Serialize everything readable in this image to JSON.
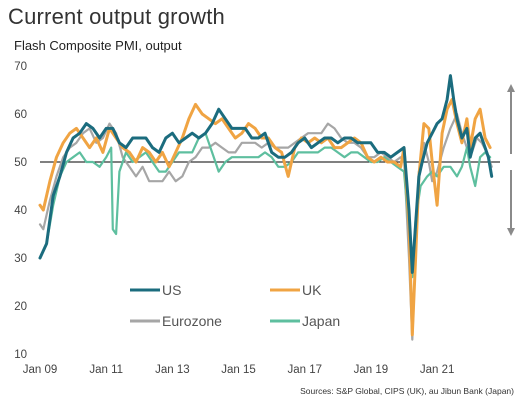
{
  "title": "Current output growth",
  "subtitle": "Flash Composite PMI, output",
  "source": "Sources: S&P Global, CIPS (UK), au Jibun Bank (Japan)",
  "colors": {
    "US": "#1b6c7e",
    "UK": "#f0a443",
    "Eurozone": "#a6a6a6",
    "Japan": "#5ebf9f",
    "arrow": "#8a8a8a",
    "refline": "#000000"
  },
  "chart_data": {
    "type": "line",
    "title": "Current output growth",
    "subtitle": "Flash Composite PMI, output",
    "xlabel": "",
    "ylabel": "",
    "xlim": [
      2009.0,
      2022.9
    ],
    "ylim": [
      10,
      70
    ],
    "yticks": [
      10,
      20,
      30,
      40,
      50,
      60,
      70
    ],
    "xticks": [
      {
        "value": 2009.0,
        "label": "Jan 09"
      },
      {
        "value": 2011.0,
        "label": "Jan 11"
      },
      {
        "value": 2013.0,
        "label": "Jan 13"
      },
      {
        "value": 2015.0,
        "label": "Jan 15"
      },
      {
        "value": 2017.0,
        "label": "Jan 17"
      },
      {
        "value": 2019.0,
        "label": "Jan 19"
      },
      {
        "value": 2021.0,
        "label": "Jan 21"
      }
    ],
    "reference_line": 50,
    "grid": false,
    "legend_position": "bottom-center",
    "series": [
      {
        "name": "US",
        "key": "US",
        "points": [
          [
            2009.0,
            30
          ],
          [
            2009.2,
            33
          ],
          [
            2009.4,
            43
          ],
          [
            2009.6,
            47
          ],
          [
            2009.8,
            52
          ],
          [
            2010.0,
            55
          ],
          [
            2010.2,
            56
          ],
          [
            2010.4,
            58
          ],
          [
            2010.6,
            57
          ],
          [
            2010.8,
            55
          ],
          [
            2011.0,
            57
          ],
          [
            2011.2,
            57
          ],
          [
            2011.4,
            54
          ],
          [
            2011.6,
            53
          ],
          [
            2011.8,
            55
          ],
          [
            2012.0,
            55
          ],
          [
            2012.2,
            55
          ],
          [
            2012.4,
            53
          ],
          [
            2012.6,
            52
          ],
          [
            2012.8,
            55
          ],
          [
            2013.0,
            56
          ],
          [
            2013.2,
            54
          ],
          [
            2013.4,
            55
          ],
          [
            2013.6,
            56
          ],
          [
            2013.8,
            55
          ],
          [
            2014.0,
            56
          ],
          [
            2014.2,
            58
          ],
          [
            2014.4,
            61
          ],
          [
            2014.6,
            59
          ],
          [
            2014.8,
            57
          ],
          [
            2015.0,
            57
          ],
          [
            2015.2,
            57
          ],
          [
            2015.4,
            55
          ],
          [
            2015.6,
            55
          ],
          [
            2015.8,
            56
          ],
          [
            2016.0,
            52
          ],
          [
            2016.2,
            51
          ],
          [
            2016.4,
            51
          ],
          [
            2016.6,
            52
          ],
          [
            2016.8,
            54
          ],
          [
            2017.0,
            55
          ],
          [
            2017.2,
            53
          ],
          [
            2017.4,
            54
          ],
          [
            2017.6,
            55
          ],
          [
            2017.8,
            55
          ],
          [
            2018.0,
            54
          ],
          [
            2018.2,
            55
          ],
          [
            2018.4,
            55
          ],
          [
            2018.6,
            54
          ],
          [
            2018.8,
            54
          ],
          [
            2019.0,
            54
          ],
          [
            2019.2,
            52
          ],
          [
            2019.4,
            52
          ],
          [
            2019.6,
            51
          ],
          [
            2019.8,
            52
          ],
          [
            2020.0,
            53
          ],
          [
            2020.15,
            40
          ],
          [
            2020.25,
            27
          ],
          [
            2020.35,
            37
          ],
          [
            2020.45,
            47
          ],
          [
            2020.55,
            50
          ],
          [
            2020.7,
            54
          ],
          [
            2020.85,
            56
          ],
          [
            2021.0,
            58
          ],
          [
            2021.15,
            59
          ],
          [
            2021.3,
            63
          ],
          [
            2021.4,
            68
          ],
          [
            2021.5,
            63
          ],
          [
            2021.6,
            59
          ],
          [
            2021.75,
            55
          ],
          [
            2021.9,
            57
          ],
          [
            2022.0,
            51
          ],
          [
            2022.15,
            55
          ],
          [
            2022.3,
            56
          ],
          [
            2022.45,
            53
          ],
          [
            2022.55,
            51
          ],
          [
            2022.65,
            47
          ]
        ]
      },
      {
        "name": "UK",
        "key": "UK",
        "points": [
          [
            2009.0,
            41
          ],
          [
            2009.1,
            40
          ],
          [
            2009.3,
            46
          ],
          [
            2009.5,
            51
          ],
          [
            2009.7,
            54
          ],
          [
            2009.9,
            56
          ],
          [
            2010.1,
            57
          ],
          [
            2010.3,
            55
          ],
          [
            2010.5,
            53
          ],
          [
            2010.7,
            55
          ],
          [
            2010.9,
            52
          ],
          [
            2011.1,
            57
          ],
          [
            2011.3,
            55
          ],
          [
            2011.5,
            53
          ],
          [
            2011.7,
            52
          ],
          [
            2011.9,
            50
          ],
          [
            2012.1,
            53
          ],
          [
            2012.3,
            52
          ],
          [
            2012.5,
            50
          ],
          [
            2012.7,
            52
          ],
          [
            2012.9,
            49
          ],
          [
            2013.1,
            52
          ],
          [
            2013.3,
            55
          ],
          [
            2013.5,
            59
          ],
          [
            2013.7,
            62
          ],
          [
            2013.9,
            60
          ],
          [
            2014.1,
            59
          ],
          [
            2014.3,
            58
          ],
          [
            2014.5,
            59
          ],
          [
            2014.7,
            57
          ],
          [
            2014.9,
            55
          ],
          [
            2015.1,
            56
          ],
          [
            2015.3,
            58
          ],
          [
            2015.5,
            57
          ],
          [
            2015.7,
            55
          ],
          [
            2015.9,
            55
          ],
          [
            2016.1,
            53
          ],
          [
            2016.3,
            52
          ],
          [
            2016.5,
            47
          ],
          [
            2016.7,
            53
          ],
          [
            2016.9,
            55
          ],
          [
            2017.1,
            54
          ],
          [
            2017.3,
            55
          ],
          [
            2017.5,
            54
          ],
          [
            2017.7,
            55
          ],
          [
            2017.9,
            53
          ],
          [
            2018.1,
            53
          ],
          [
            2018.3,
            54
          ],
          [
            2018.5,
            55
          ],
          [
            2018.7,
            54
          ],
          [
            2018.9,
            51
          ],
          [
            2019.1,
            50
          ],
          [
            2019.3,
            51
          ],
          [
            2019.5,
            50
          ],
          [
            2019.7,
            50
          ],
          [
            2019.9,
            49
          ],
          [
            2020.0,
            53
          ],
          [
            2020.15,
            37
          ],
          [
            2020.25,
            14
          ],
          [
            2020.35,
            30
          ],
          [
            2020.45,
            47
          ],
          [
            2020.6,
            58
          ],
          [
            2020.75,
            57
          ],
          [
            2020.85,
            50
          ],
          [
            2021.0,
            41
          ],
          [
            2021.15,
            56
          ],
          [
            2021.3,
            61
          ],
          [
            2021.45,
            63
          ],
          [
            2021.6,
            58
          ],
          [
            2021.75,
            54
          ],
          [
            2021.9,
            59
          ],
          [
            2022.0,
            53
          ],
          [
            2022.15,
            59
          ],
          [
            2022.3,
            61
          ],
          [
            2022.45,
            55
          ],
          [
            2022.6,
            53
          ]
        ]
      },
      {
        "name": "Eurozone",
        "key": "Eurozone",
        "points": [
          [
            2009.0,
            37
          ],
          [
            2009.1,
            36
          ],
          [
            2009.3,
            42
          ],
          [
            2009.5,
            47
          ],
          [
            2009.7,
            51
          ],
          [
            2009.9,
            53
          ],
          [
            2010.1,
            54
          ],
          [
            2010.3,
            56
          ],
          [
            2010.5,
            57
          ],
          [
            2010.7,
            54
          ],
          [
            2010.9,
            55
          ],
          [
            2011.1,
            58
          ],
          [
            2011.3,
            56
          ],
          [
            2011.5,
            51
          ],
          [
            2011.7,
            49
          ],
          [
            2011.9,
            47
          ],
          [
            2012.1,
            49
          ],
          [
            2012.3,
            46
          ],
          [
            2012.5,
            46
          ],
          [
            2012.7,
            46
          ],
          [
            2012.9,
            48
          ],
          [
            2013.1,
            46
          ],
          [
            2013.3,
            47
          ],
          [
            2013.5,
            50
          ],
          [
            2013.7,
            51
          ],
          [
            2013.9,
            53
          ],
          [
            2014.1,
            53
          ],
          [
            2014.3,
            54
          ],
          [
            2014.5,
            53
          ],
          [
            2014.7,
            52
          ],
          [
            2014.9,
            52
          ],
          [
            2015.1,
            54
          ],
          [
            2015.3,
            54
          ],
          [
            2015.5,
            54
          ],
          [
            2015.7,
            53
          ],
          [
            2015.9,
            54
          ],
          [
            2016.1,
            53
          ],
          [
            2016.3,
            53
          ],
          [
            2016.5,
            53
          ],
          [
            2016.7,
            54
          ],
          [
            2016.9,
            55
          ],
          [
            2017.1,
            56
          ],
          [
            2017.3,
            56
          ],
          [
            2017.5,
            56
          ],
          [
            2017.7,
            58
          ],
          [
            2017.9,
            57
          ],
          [
            2018.1,
            55
          ],
          [
            2018.3,
            54
          ],
          [
            2018.5,
            54
          ],
          [
            2018.7,
            53
          ],
          [
            2018.9,
            51
          ],
          [
            2019.1,
            51
          ],
          [
            2019.3,
            52
          ],
          [
            2019.5,
            51
          ],
          [
            2019.7,
            50
          ],
          [
            2019.9,
            51
          ],
          [
            2020.0,
            51
          ],
          [
            2020.15,
            30
          ],
          [
            2020.25,
            13
          ],
          [
            2020.35,
            31
          ],
          [
            2020.45,
            48
          ],
          [
            2020.6,
            54
          ],
          [
            2020.75,
            50
          ],
          [
            2020.85,
            46
          ],
          [
            2021.0,
            48
          ],
          [
            2021.2,
            53
          ],
          [
            2021.4,
            57
          ],
          [
            2021.6,
            60
          ],
          [
            2021.75,
            56
          ],
          [
            2021.9,
            53
          ],
          [
            2022.05,
            52
          ],
          [
            2022.2,
            55
          ],
          [
            2022.35,
            54
          ],
          [
            2022.5,
            52
          ],
          [
            2022.65,
            49
          ]
        ]
      },
      {
        "name": "Japan",
        "key": "Japan",
        "points": [
          [
            2009.0,
            30
          ],
          [
            2009.2,
            33
          ],
          [
            2009.4,
            41
          ],
          [
            2009.6,
            47
          ],
          [
            2009.8,
            50
          ],
          [
            2010.0,
            51
          ],
          [
            2010.2,
            52
          ],
          [
            2010.4,
            50
          ],
          [
            2010.6,
            50
          ],
          [
            2010.8,
            49
          ],
          [
            2011.0,
            51
          ],
          [
            2011.15,
            53
          ],
          [
            2011.2,
            36
          ],
          [
            2011.3,
            35
          ],
          [
            2011.4,
            48
          ],
          [
            2011.6,
            52
          ],
          [
            2011.8,
            50
          ],
          [
            2012.0,
            51
          ],
          [
            2012.2,
            52
          ],
          [
            2012.4,
            50
          ],
          [
            2012.6,
            48
          ],
          [
            2012.8,
            48
          ],
          [
            2013.0,
            50
          ],
          [
            2013.2,
            52
          ],
          [
            2013.4,
            52
          ],
          [
            2013.6,
            52
          ],
          [
            2013.8,
            55
          ],
          [
            2014.0,
            56
          ],
          [
            2014.2,
            52
          ],
          [
            2014.4,
            48
          ],
          [
            2014.6,
            50
          ],
          [
            2014.8,
            51
          ],
          [
            2015.0,
            51
          ],
          [
            2015.2,
            51
          ],
          [
            2015.4,
            51
          ],
          [
            2015.6,
            51
          ],
          [
            2015.8,
            52
          ],
          [
            2016.0,
            51
          ],
          [
            2016.2,
            49
          ],
          [
            2016.4,
            49
          ],
          [
            2016.6,
            50
          ],
          [
            2016.8,
            52
          ],
          [
            2017.0,
            52
          ],
          [
            2017.2,
            52
          ],
          [
            2017.4,
            52
          ],
          [
            2017.6,
            53
          ],
          [
            2017.8,
            53
          ],
          [
            2018.0,
            52
          ],
          [
            2018.2,
            51
          ],
          [
            2018.4,
            52
          ],
          [
            2018.6,
            52
          ],
          [
            2018.8,
            51
          ],
          [
            2019.0,
            50
          ],
          [
            2019.2,
            50
          ],
          [
            2019.4,
            51
          ],
          [
            2019.6,
            50
          ],
          [
            2019.8,
            49
          ],
          [
            2020.0,
            48
          ],
          [
            2020.15,
            36
          ],
          [
            2020.25,
            26
          ],
          [
            2020.35,
            38
          ],
          [
            2020.5,
            45
          ],
          [
            2020.7,
            47
          ],
          [
            2020.85,
            48
          ],
          [
            2021.0,
            47
          ],
          [
            2021.2,
            49
          ],
          [
            2021.4,
            49
          ],
          [
            2021.6,
            47
          ],
          [
            2021.75,
            49
          ],
          [
            2021.9,
            53
          ],
          [
            2022.0,
            49
          ],
          [
            2022.15,
            45
          ],
          [
            2022.3,
            51
          ],
          [
            2022.45,
            52
          ],
          [
            2022.6,
            51
          ]
        ]
      }
    ]
  }
}
